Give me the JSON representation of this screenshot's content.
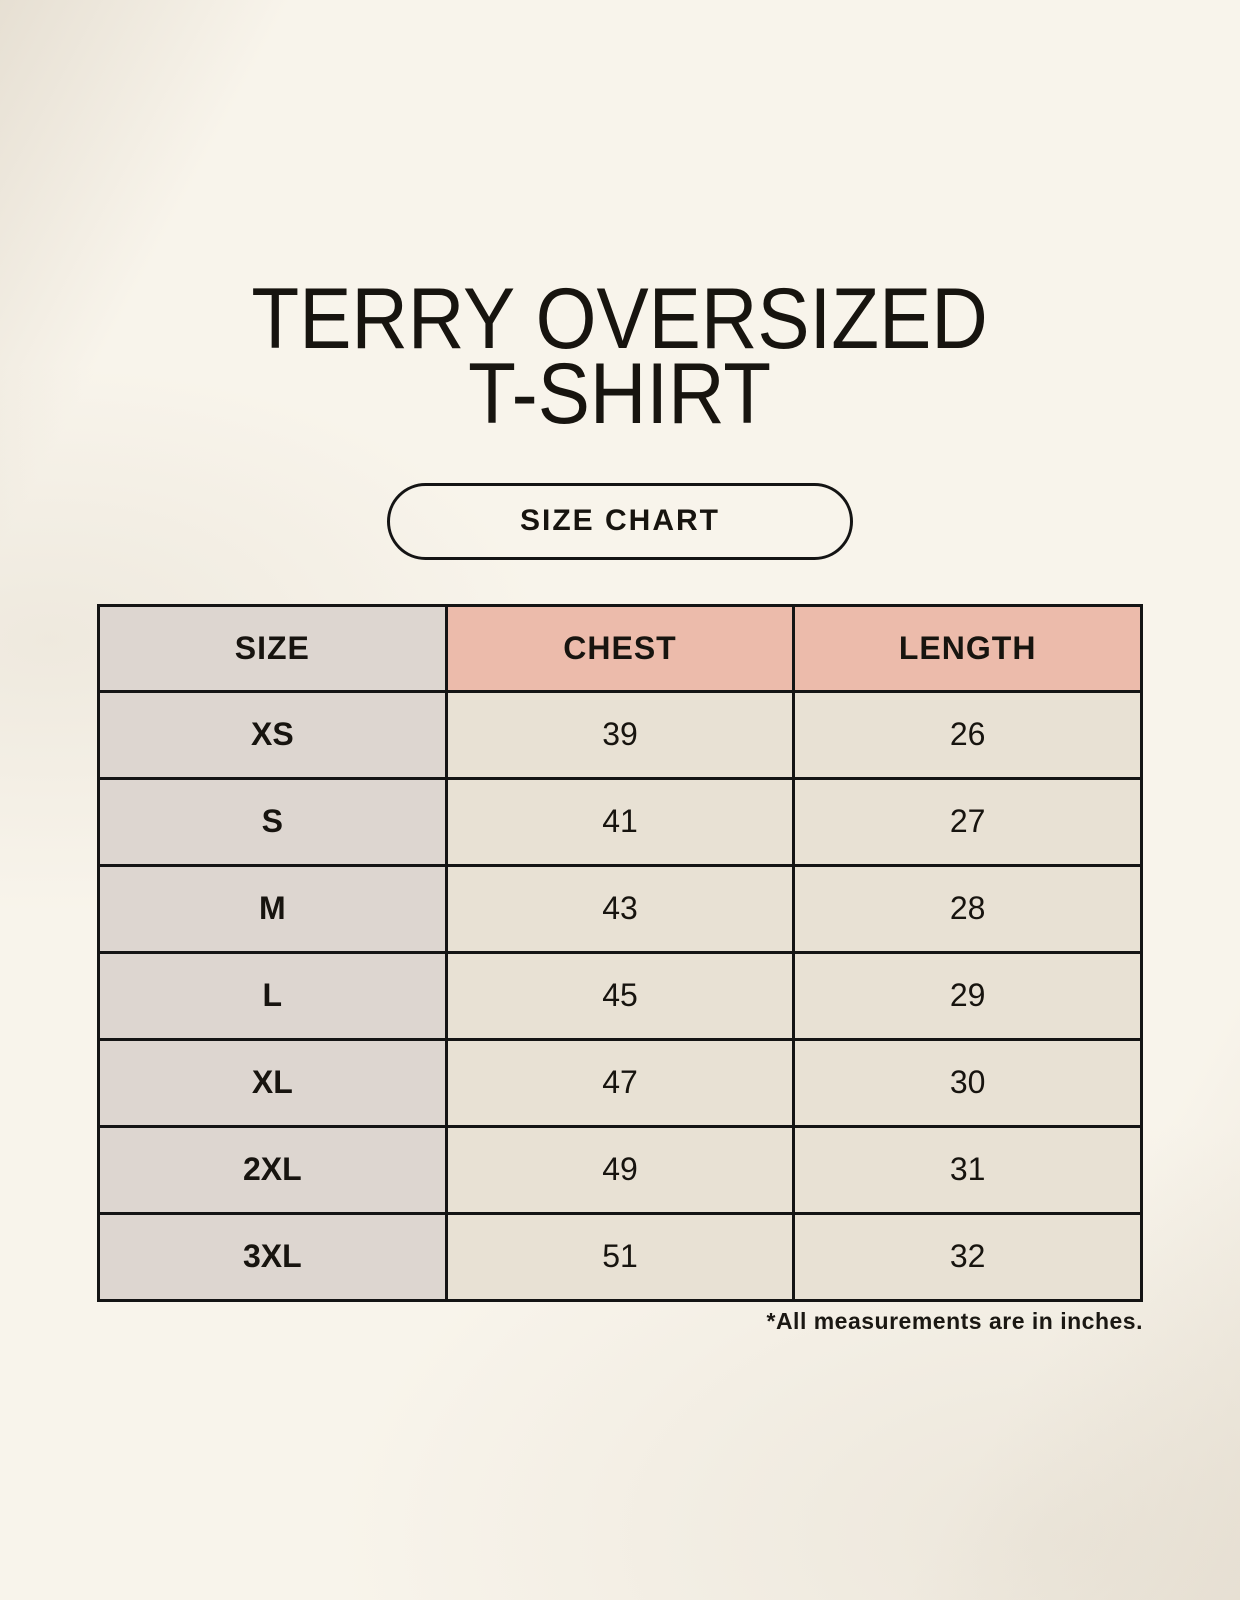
{
  "header": {
    "title_line1": "TERRY OVERSIZED",
    "title_line2": "T-SHIRT",
    "badge_label": "SIZE CHART"
  },
  "chart_data": {
    "type": "table",
    "title": "TERRY OVERSIZED T-SHIRT",
    "columns": [
      "SIZE",
      "CHEST",
      "LENGTH"
    ],
    "units": "inches",
    "rows": [
      {
        "size": "XS",
        "chest": 39,
        "length": 26
      },
      {
        "size": "S",
        "chest": 41,
        "length": 27
      },
      {
        "size": "M",
        "chest": 43,
        "length": 28
      },
      {
        "size": "L",
        "chest": 45,
        "length": 29
      },
      {
        "size": "XL",
        "chest": 47,
        "length": 30
      },
      {
        "size": "2XL",
        "chest": 49,
        "length": 31
      },
      {
        "size": "3XL",
        "chest": 51,
        "length": 32
      }
    ]
  },
  "footer": {
    "note": "*All measurements are in inches."
  },
  "colors": {
    "page_background": "#F8F4EB",
    "cell_cream": "#E8E1D4",
    "cell_gray": "#DDD6D0",
    "header_pink": "#ECBBAB",
    "border_black": "#141414",
    "text_black": "#17140F"
  }
}
